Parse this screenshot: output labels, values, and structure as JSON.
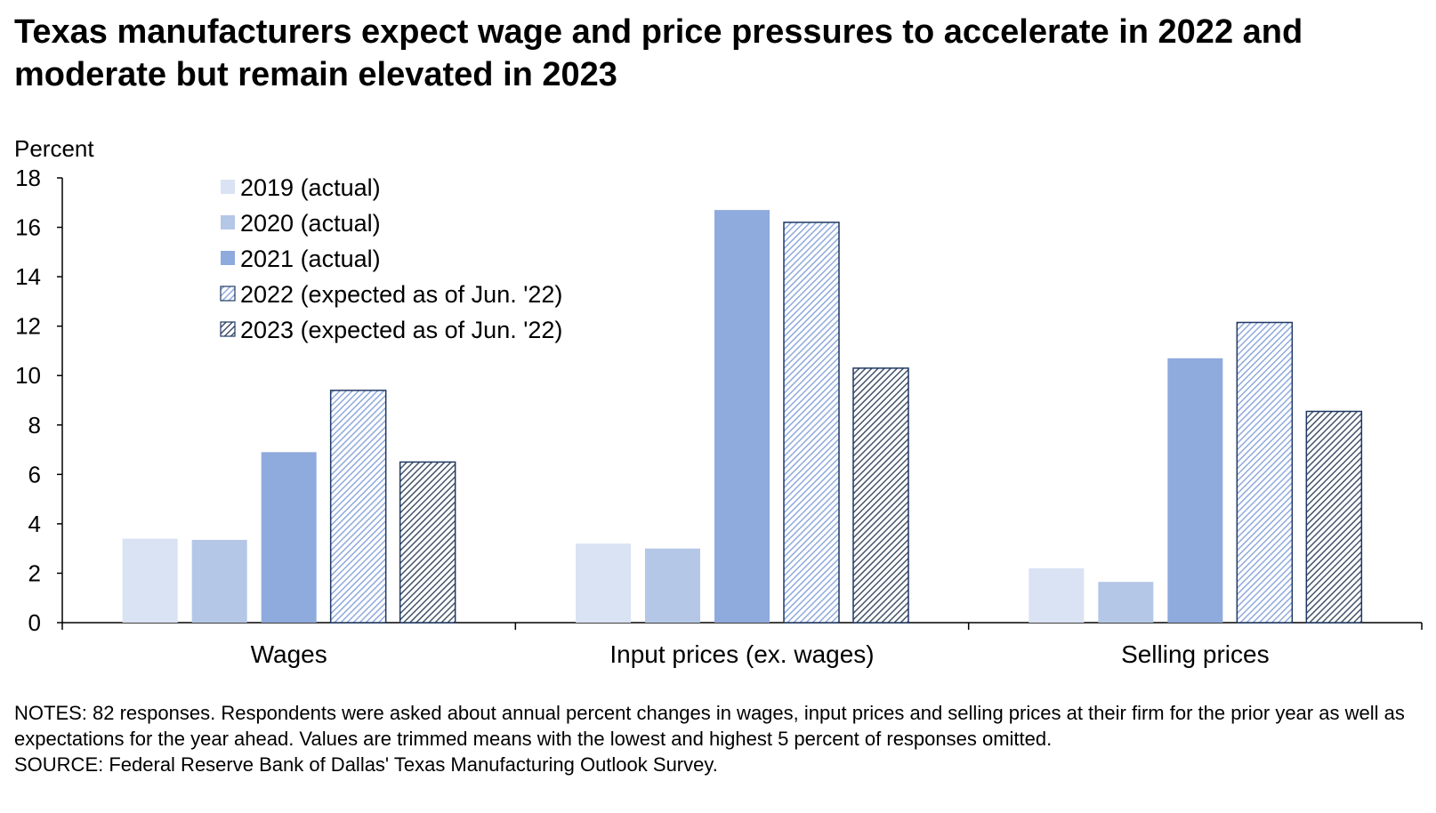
{
  "title": "Texas manufacturers expect wage and price pressures to accelerate in 2022 and moderate but remain elevated in 2023",
  "notes": "NOTES: 82 responses. Respondents were asked about annual percent changes in wages, input prices and selling prices at their firm for the prior year as well as expectations for the year ahead. Values are trimmed means with the lowest and highest 5 percent of responses omitted.",
  "source": "SOURCE: Federal Reserve Bank of Dallas' Texas Manufacturing Outlook Survey.",
  "chart_data": {
    "type": "bar",
    "title": "Texas manufacturers expect wage and price pressures to accelerate in 2022 and moderate but remain elevated in 2023",
    "ylabel": "Percent",
    "xlabel": "",
    "ylim": [
      0,
      18
    ],
    "yticks": [
      0,
      2,
      4,
      6,
      8,
      10,
      12,
      14,
      16,
      18
    ],
    "categories": [
      "Wages",
      "Input prices (ex. wages)",
      "Selling prices"
    ],
    "legend_position": "top-left",
    "series": [
      {
        "name": "2019 (actual)",
        "values": [
          3.4,
          3.2,
          2.2
        ],
        "color": "#dae3f3",
        "pattern": "solid"
      },
      {
        "name": "2020 (actual)",
        "values": [
          3.35,
          3.0,
          1.65
        ],
        "color": "#b4c7e7",
        "pattern": "solid"
      },
      {
        "name": "2021 (actual)",
        "values": [
          6.9,
          16.7,
          10.7
        ],
        "color": "#8faadc",
        "pattern": "solid"
      },
      {
        "name": "2022 (expected as of Jun. '22)",
        "values": [
          9.4,
          16.2,
          12.15
        ],
        "color": "#8faadc",
        "pattern": "hatch-light",
        "border": "#1f3864"
      },
      {
        "name": "2023 (expected as of Jun. '22)",
        "values": [
          6.5,
          10.3,
          8.55
        ],
        "color": "#44546a",
        "pattern": "hatch-dark",
        "border": "#1f3864"
      }
    ]
  }
}
